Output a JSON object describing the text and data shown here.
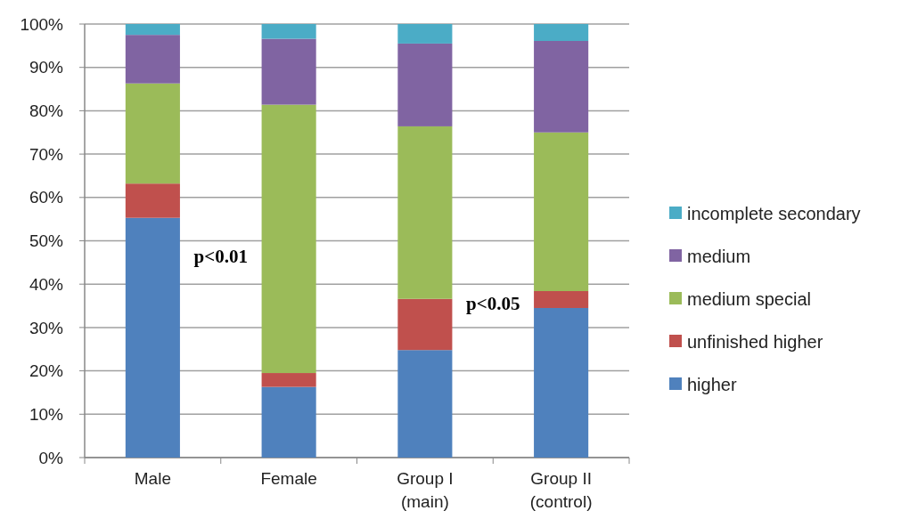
{
  "chart_data": {
    "type": "bar",
    "stacked": true,
    "categories": [
      "Male",
      "Female",
      "Group I\n(main)",
      "Group II\n(control)"
    ],
    "series": [
      {
        "name": "higher",
        "color": "#4f81bd",
        "values": [
          55.3,
          16.3,
          24.8,
          34.5
        ]
      },
      {
        "name": "unfinished higher",
        "color": "#c0504d",
        "values": [
          7.9,
          3.2,
          11.8,
          3.9
        ]
      },
      {
        "name": "medium special",
        "color": "#9bbb59",
        "values": [
          23.1,
          61.9,
          39.8,
          36.6
        ]
      },
      {
        "name": "medium",
        "color": "#8064a2",
        "values": [
          11.2,
          15.2,
          19.1,
          21.1
        ]
      },
      {
        "name": "incomplete secondary",
        "color": "#4bacc6",
        "values": [
          2.5,
          3.4,
          4.5,
          3.9
        ]
      }
    ],
    "ylim": [
      0,
      100
    ],
    "yticks": [
      {
        "value": 0,
        "label": "0%"
      },
      {
        "value": 10,
        "label": "10%"
      },
      {
        "value": 20,
        "label": "20%"
      },
      {
        "value": 30,
        "label": "30%"
      },
      {
        "value": 40,
        "label": "40%"
      },
      {
        "value": 50,
        "label": "50%"
      },
      {
        "value": 60,
        "label": "60%"
      },
      {
        "value": 70,
        "label": "70%"
      },
      {
        "value": 80,
        "label": "80%"
      },
      {
        "value": 90,
        "label": "90%"
      },
      {
        "value": 100,
        "label": "100%"
      }
    ],
    "grid": "y",
    "legend": "right",
    "annotations": [
      "p<0.01",
      "p<0.05"
    ]
  }
}
